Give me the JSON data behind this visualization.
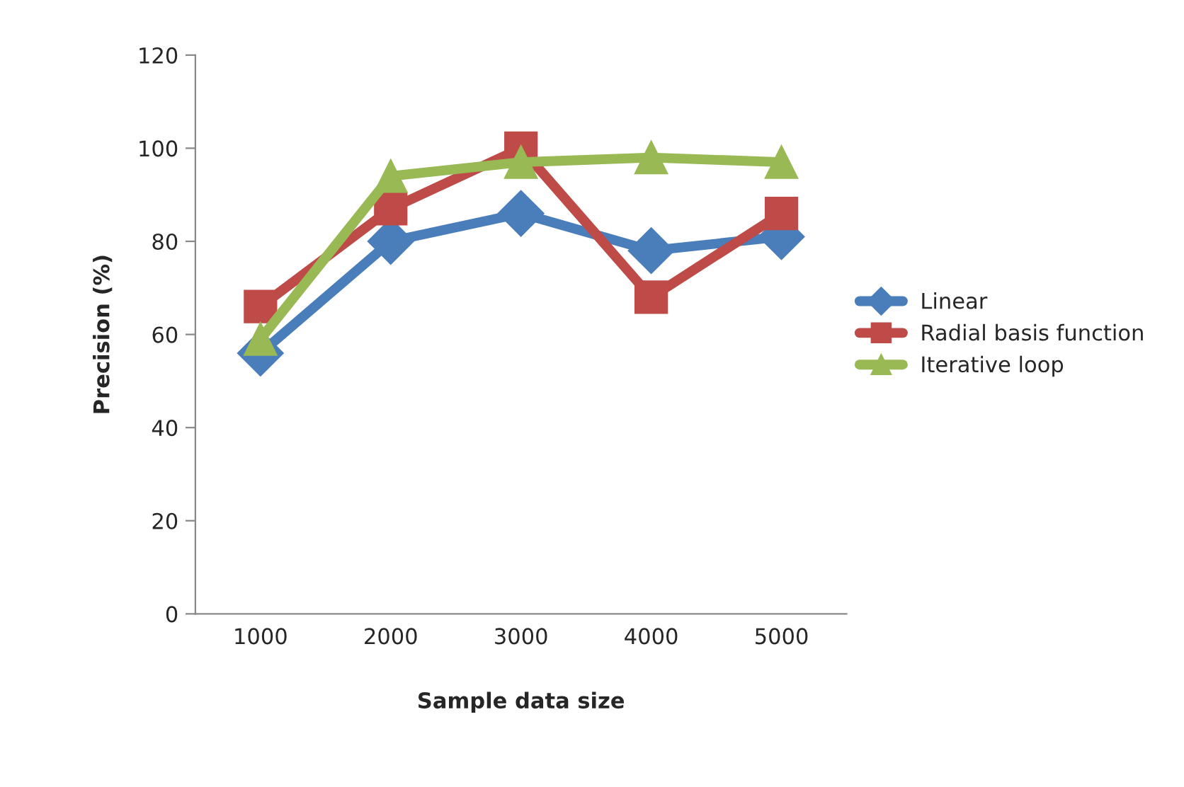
{
  "chart_data": {
    "type": "line",
    "xlabel": "Sample data size",
    "ylabel": "Precision (%)",
    "categories": [
      "1000",
      "2000",
      "3000",
      "4000",
      "5000"
    ],
    "series": [
      {
        "name": "Linear",
        "color": "#4a7ebb",
        "marker": "diamond",
        "values": [
          56,
          80,
          86,
          78,
          81
        ]
      },
      {
        "name": "Radial basis function",
        "color": "#be4b48",
        "marker": "square",
        "values": [
          66,
          87,
          100,
          68,
          86
        ]
      },
      {
        "name": "Iterative loop",
        "color": "#98b954",
        "marker": "triangle",
        "values": [
          59,
          94,
          97,
          98,
          97
        ]
      }
    ],
    "ylim": [
      0,
      120
    ],
    "yticks": [
      0,
      20,
      40,
      60,
      80,
      100,
      120
    ],
    "grid": false,
    "legend": "right",
    "line_style": "solid"
  }
}
